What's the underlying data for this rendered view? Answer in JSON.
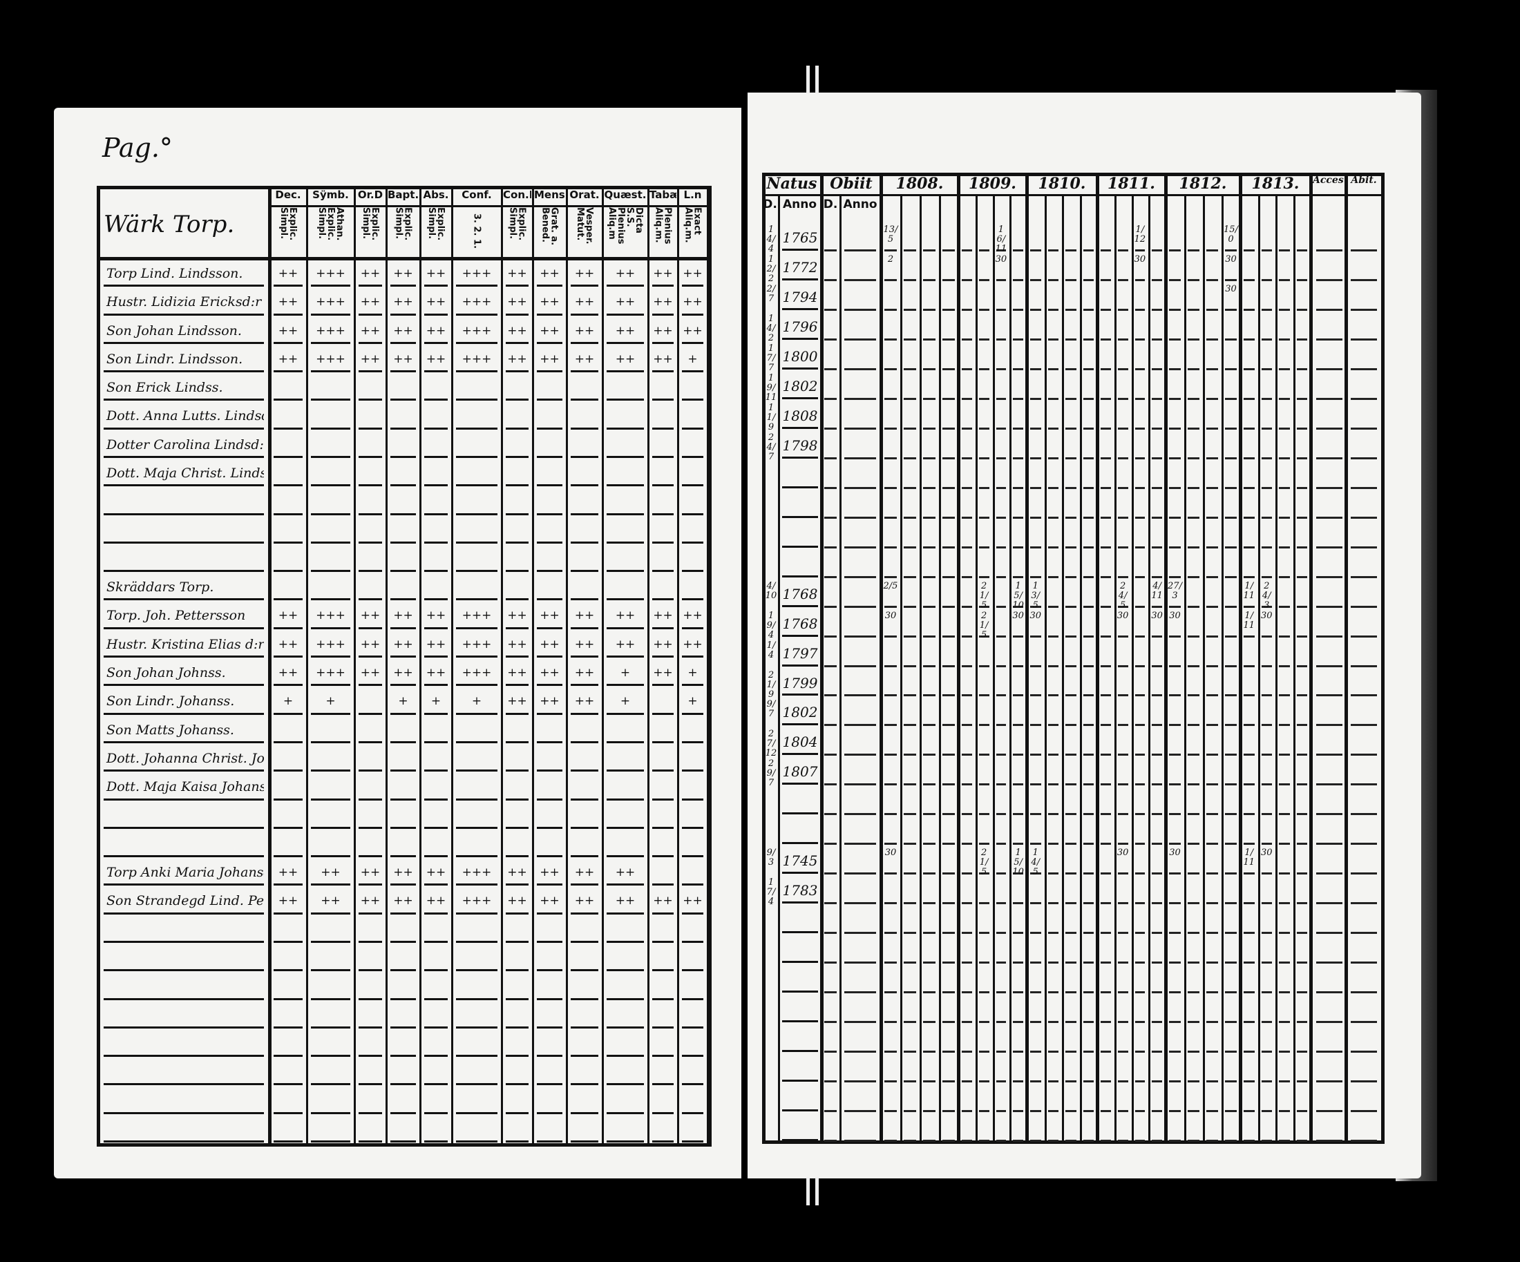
{
  "left_page": {
    "page_label": "Pag.°",
    "section_title": "Wärk Torp.",
    "columns": [
      {
        "label": "Dec.",
        "sub": "Explic. Simpl."
      },
      {
        "label": "Sÿmb.",
        "sub": "Athan. Explic. Simpl."
      },
      {
        "label": "Or.D",
        "sub": "Explic. Simpl."
      },
      {
        "label": "Bapt.",
        "sub": "Explic. Simpl."
      },
      {
        "label": "Abs.",
        "sub": "Explic. Simpl."
      },
      {
        "label": "Conf.",
        "sub": "3. 2. 1."
      },
      {
        "label": "Con.D",
        "sub": "Explic. Simpl."
      },
      {
        "label": "Mens.",
        "sub": "Grat. a. Bened."
      },
      {
        "label": "Orat.",
        "sub": "Vesper. Matut."
      },
      {
        "label": "Quæst.",
        "sub": "Dicta S.S. Plenius Aliq.m"
      },
      {
        "label": "Tabæ",
        "sub": "Plenius Aliq.m."
      },
      {
        "label": "L.n",
        "sub": "Exact Aliq.m."
      }
    ],
    "rows": [
      {
        "name": "Torp Lind. Lindsson.",
        "marks": [
          "++",
          "+++",
          "++",
          "++",
          "++",
          "+++",
          "++",
          "++",
          "++",
          "++",
          "++",
          "++"
        ]
      },
      {
        "name": "Hustr. Lidizia Ericksd:r",
        "marks": [
          "++",
          "+++",
          "++",
          "++",
          "++",
          "+++",
          "++",
          "++",
          "++",
          "++",
          "++",
          "++"
        ]
      },
      {
        "name": "Son Johan Lindsson.",
        "marks": [
          "++",
          "+++",
          "++",
          "++",
          "++",
          "+++",
          "++",
          "++",
          "++",
          "++",
          "++",
          "++"
        ]
      },
      {
        "name": "Son Lindr. Lindsson.",
        "marks": [
          "++",
          "+++",
          "++",
          "++",
          "++",
          "+++",
          "++",
          "++",
          "++",
          "++",
          "++",
          "+"
        ]
      },
      {
        "name": "Son Erick Lindss.",
        "marks": []
      },
      {
        "name": "Dott. Anna Lutts. Lindsd:r",
        "marks": []
      },
      {
        "name": "Dotter Carolina Lindsd:r",
        "marks": []
      },
      {
        "name": "Dott. Maja Christ. Lindsd:r",
        "marks": []
      },
      {
        "name": "",
        "marks": []
      },
      {
        "name": "",
        "marks": []
      },
      {
        "name": "",
        "marks": []
      },
      {
        "name": "Skräddars Torp.",
        "marks": []
      },
      {
        "name": "Torp. Joh. Pettersson",
        "marks": [
          "++",
          "+++",
          "++",
          "++",
          "++",
          "+++",
          "++",
          "++",
          "++",
          "++",
          "++",
          "++"
        ]
      },
      {
        "name": "Hustr. Kristina Elias d:r",
        "marks": [
          "++",
          "+++",
          "++",
          "++",
          "++",
          "+++",
          "++",
          "++",
          "++",
          "++",
          "++",
          "++"
        ]
      },
      {
        "name": "Son Johan Johnss.",
        "marks": [
          "++",
          "+++",
          "++",
          "++",
          "++",
          "+++",
          "++",
          "++",
          "++",
          "+",
          "++",
          "+"
        ]
      },
      {
        "name": "Son Lindr. Johanss.",
        "marks": [
          "+",
          "+",
          "",
          "+",
          "+",
          "+",
          "++",
          "++",
          "++",
          "+",
          "",
          "+"
        ]
      },
      {
        "name": "Son Matts Johanss.",
        "marks": []
      },
      {
        "name": "Dott. Johanna Christ. Jonsd:r",
        "marks": []
      },
      {
        "name": "Dott. Maja Kaisa Johansd:r",
        "marks": []
      },
      {
        "name": "",
        "marks": []
      },
      {
        "name": "",
        "marks": []
      },
      {
        "name": "Torp Anki Maria Johansd:r",
        "marks": [
          "++",
          "++",
          "++",
          "++",
          "++",
          "+++",
          "++",
          "++",
          "++",
          "++",
          "",
          ""
        ]
      },
      {
        "name": "Son Strandegd Lind. Petters.",
        "marks": [
          "++",
          "++",
          "++",
          "++",
          "++",
          "+++",
          "++",
          "++",
          "++",
          "++",
          "++",
          "++"
        ]
      },
      {
        "name": "",
        "marks": []
      },
      {
        "name": "",
        "marks": []
      },
      {
        "name": "",
        "marks": []
      },
      {
        "name": "",
        "marks": []
      },
      {
        "name": "",
        "marks": []
      },
      {
        "name": "",
        "marks": []
      },
      {
        "name": "",
        "marks": []
      },
      {
        "name": "",
        "marks": []
      }
    ]
  },
  "right_page": {
    "natus_label": "Natus",
    "obiit_label": "Obiit",
    "d_label": "D.",
    "anno_label": "Anno",
    "years": [
      "1808.",
      "1809.",
      "1810.",
      "1811.",
      "1812.",
      "1813."
    ],
    "acces_label": "Acces.",
    "abit_label": "Abit.",
    "rows": [
      {
        "d": "14/4",
        "anno": "1765",
        "notes": [
          [
            0,
            "13/5"
          ],
          [
            6,
            "16/11"
          ],
          [
            14,
            "1/12"
          ],
          [
            19,
            "15/0"
          ]
        ]
      },
      {
        "d": "12/2",
        "anno": "1772",
        "notes": [
          [
            0,
            "2"
          ],
          [
            6,
            "30"
          ],
          [
            14,
            "30"
          ],
          [
            19,
            "30"
          ]
        ]
      },
      {
        "d": "2/7",
        "anno": "1794",
        "notes": [
          [
            19,
            "30"
          ]
        ]
      },
      {
        "d": "14/2",
        "anno": "1796",
        "notes": []
      },
      {
        "d": "17/7",
        "anno": "1800",
        "notes": []
      },
      {
        "d": "19/11",
        "anno": "1802",
        "notes": []
      },
      {
        "d": "11/9",
        "anno": "1808",
        "notes": []
      },
      {
        "d": "24/7",
        "anno": "1798",
        "notes": []
      },
      {
        "d": "",
        "anno": "",
        "notes": []
      },
      {
        "d": "",
        "anno": "",
        "notes": []
      },
      {
        "d": "",
        "anno": "",
        "notes": []
      },
      {
        "d": "",
        "anno": "",
        "notes": []
      },
      {
        "d": "4/10",
        "anno": "1768",
        "notes": [
          [
            0,
            "2/5"
          ],
          [
            5,
            "21/5"
          ],
          [
            7,
            "15/10"
          ],
          [
            8,
            "13/5"
          ],
          [
            13,
            "24/5"
          ],
          [
            15,
            "4/11"
          ],
          [
            16,
            "27/3"
          ],
          [
            20,
            "1/11"
          ],
          [
            21,
            "24/3"
          ]
        ]
      },
      {
        "d": "19/4",
        "anno": "1768",
        "notes": [
          [
            0,
            "30"
          ],
          [
            5,
            "21/5"
          ],
          [
            7,
            "30"
          ],
          [
            8,
            "30"
          ],
          [
            13,
            "30"
          ],
          [
            15,
            "30"
          ],
          [
            16,
            "30"
          ],
          [
            20,
            "1/11"
          ],
          [
            21,
            "30"
          ]
        ]
      },
      {
        "d": "1/4",
        "anno": "1797",
        "notes": []
      },
      {
        "d": "21/9",
        "anno": "1799",
        "notes": []
      },
      {
        "d": "9/7",
        "anno": "1802",
        "notes": []
      },
      {
        "d": "27/12",
        "anno": "1804",
        "notes": []
      },
      {
        "d": "29/7",
        "anno": "1807",
        "notes": []
      },
      {
        "d": "",
        "anno": "",
        "notes": []
      },
      {
        "d": "",
        "anno": "",
        "notes": []
      },
      {
        "d": "9/3",
        "anno": "1745",
        "notes": [
          [
            0,
            "30"
          ],
          [
            5,
            "21/5"
          ],
          [
            7,
            "15/10"
          ],
          [
            8,
            "14/5"
          ],
          [
            13,
            "30"
          ],
          [
            16,
            "30"
          ],
          [
            20,
            "1/11"
          ],
          [
            21,
            "30"
          ]
        ]
      },
      {
        "d": "17/4",
        "anno": "1783",
        "notes": []
      },
      {
        "d": "",
        "anno": "",
        "notes": []
      },
      {
        "d": "",
        "anno": "",
        "notes": []
      },
      {
        "d": "",
        "anno": "",
        "notes": []
      },
      {
        "d": "",
        "anno": "",
        "notes": []
      },
      {
        "d": "",
        "anno": "",
        "notes": []
      },
      {
        "d": "",
        "anno": "",
        "notes": []
      },
      {
        "d": "",
        "anno": "",
        "notes": []
      },
      {
        "d": "",
        "anno": "",
        "notes": []
      }
    ]
  }
}
